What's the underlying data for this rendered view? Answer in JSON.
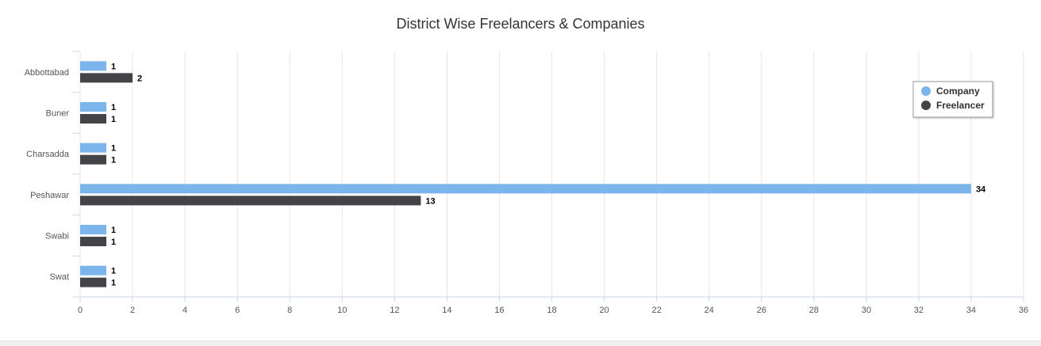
{
  "chart_data": {
    "type": "bar",
    "orientation": "horizontal",
    "title": "District Wise Freelancers & Companies",
    "categories": [
      "Abbottabad",
      "Buner",
      "Charsadda",
      "Peshawar",
      "Swabi",
      "Swat"
    ],
    "series": [
      {
        "name": "Company",
        "color": "#7cb5ec",
        "values": [
          1,
          1,
          1,
          34,
          1,
          1
        ]
      },
      {
        "name": "Freelancer",
        "color": "#434348",
        "values": [
          2,
          1,
          1,
          13,
          1,
          1
        ]
      }
    ],
    "xlim": [
      0,
      36
    ],
    "xticks": [
      0,
      2,
      4,
      6,
      8,
      10,
      12,
      14,
      16,
      18,
      20,
      22,
      24,
      26,
      28,
      30,
      32,
      34,
      36
    ],
    "grid": true,
    "data_labels": true,
    "legend_position": "top-right"
  }
}
